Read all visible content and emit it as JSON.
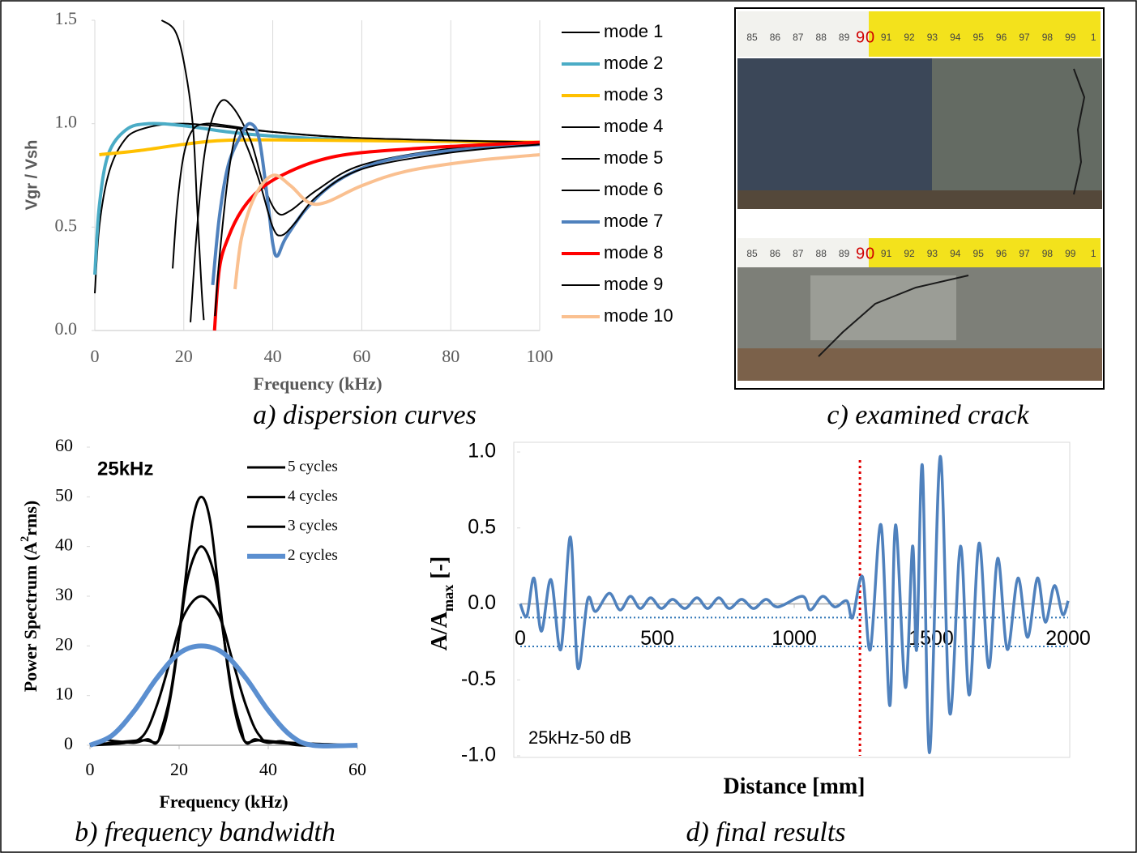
{
  "chart_data": [
    {
      "type": "line",
      "xlabel": "Frequency (kHz)",
      "ylabel": "Vgr / Vsh",
      "caption": "a) dispersion curves",
      "xlim": [
        0,
        100
      ],
      "ylim": [
        0,
        1.5
      ],
      "xticks": [
        0,
        20,
        40,
        60,
        80,
        100
      ],
      "yticks": [
        {
          "value": 0,
          "label": "0.0"
        },
        0.5,
        {
          "value": 1,
          "label": "1.0"
        },
        1.5
      ],
      "grid": "x",
      "series": [
        {
          "name": "mode 1",
          "color": "#000000",
          "x": [
            0,
            1,
            3,
            6,
            10,
            20,
            40,
            60,
            100
          ],
          "values": [
            0.18,
            0.5,
            0.75,
            0.9,
            0.97,
            1.0,
            0.96,
            0.93,
            0.91
          ]
        },
        {
          "name": "mode 2",
          "color": "#4bacc6",
          "x": [
            0,
            1,
            3,
            7,
            12,
            20,
            30,
            40,
            60,
            100
          ],
          "values": [
            0.27,
            0.6,
            0.85,
            0.97,
            1.0,
            0.99,
            0.96,
            0.94,
            0.92,
            0.91
          ]
        },
        {
          "name": "mode 3",
          "color": "#ffc000",
          "x": [
            1,
            10,
            20,
            30,
            50,
            100
          ],
          "values": [
            0.85,
            0.87,
            0.9,
            0.92,
            0.92,
            0.91
          ]
        },
        {
          "name": "mode 4",
          "color": "#000000",
          "x": [
            15,
            18,
            20,
            22,
            23,
            24,
            24.5
          ],
          "values": [
            1.5,
            1.45,
            1.3,
            1.0,
            0.6,
            0.2,
            0.05
          ]
        },
        {
          "name": "mode 5",
          "color": "#000000",
          "x": [
            17.5,
            18.5,
            20,
            22,
            25,
            30,
            40,
            60,
            100
          ],
          "values": [
            0.3,
            0.6,
            0.85,
            0.97,
            1.0,
            0.99,
            0.96,
            0.93,
            0.91
          ]
        },
        {
          "name": "mode 6",
          "color": "#000000",
          "x": [
            21.5,
            23,
            25,
            28,
            31,
            35,
            38,
            41,
            44,
            50,
            60,
            80,
            100
          ],
          "values": [
            0.04,
            0.5,
            0.9,
            1.1,
            1.08,
            0.92,
            0.7,
            0.57,
            0.58,
            0.68,
            0.8,
            0.88,
            0.91
          ]
        },
        {
          "name": "mode 7",
          "color": "#4f81bd",
          "x": [
            26.5,
            28,
            30,
            33,
            35,
            37,
            39,
            40,
            41,
            43,
            48,
            55,
            65,
            80,
            100
          ],
          "values": [
            0.22,
            0.55,
            0.8,
            0.95,
            1.0,
            0.92,
            0.6,
            0.42,
            0.36,
            0.45,
            0.6,
            0.73,
            0.82,
            0.87,
            0.9
          ]
        },
        {
          "name": "mode 8",
          "color": "#ff0000",
          "x": [
            26.9,
            28,
            30,
            33,
            37,
            42,
            50,
            60,
            80,
            100
          ],
          "values": [
            0.0,
            0.3,
            0.45,
            0.58,
            0.68,
            0.75,
            0.82,
            0.86,
            0.89,
            0.91
          ]
        },
        {
          "name": "mode 9",
          "color": "#000000",
          "x": [
            27,
            28,
            30,
            32,
            34,
            37,
            40,
            42,
            45,
            50,
            60,
            80,
            100
          ],
          "values": [
            0.07,
            0.35,
            0.75,
            0.97,
            0.9,
            0.72,
            0.5,
            0.46,
            0.52,
            0.65,
            0.78,
            0.86,
            0.9
          ]
        },
        {
          "name": "mode 10",
          "color": "#fac090",
          "x": [
            31.5,
            33,
            36,
            40,
            44,
            48,
            52,
            60,
            70,
            85,
            100
          ],
          "values": [
            0.2,
            0.45,
            0.65,
            0.75,
            0.7,
            0.62,
            0.62,
            0.7,
            0.77,
            0.82,
            0.85
          ]
        }
      ]
    },
    {
      "type": "line",
      "xlabel": "Frequency (kHz)",
      "ylabel": {
        "main": "Power Spectrum (A",
        "sup": "2",
        "tail": "rms)"
      },
      "caption": "b) frequency bandwidth",
      "annotation": "25kHz",
      "xlim": [
        0,
        60
      ],
      "ylim": [
        0,
        60
      ],
      "xticks": [
        0,
        20,
        40,
        60
      ],
      "yticks": [
        0,
        10,
        20,
        30,
        40,
        50,
        60
      ],
      "grid": "none",
      "series": [
        {
          "name": "5 cycles",
          "color": "#000000",
          "x": [
            0,
            3,
            6,
            10,
            13,
            15,
            17,
            19,
            21,
            23,
            25,
            27,
            29,
            31,
            33,
            35,
            37,
            40,
            43,
            47,
            60
          ],
          "values": [
            0,
            1,
            0.8,
            0.5,
            1.2,
            0.5,
            5,
            15,
            30,
            45,
            50,
            45,
            30,
            15,
            5,
            0.5,
            1.2,
            0.5,
            0.8,
            0,
            0
          ]
        },
        {
          "name": "4 cycles",
          "color": "#000000",
          "x": [
            0,
            5,
            12,
            15,
            16,
            18,
            20,
            22,
            25,
            28,
            30,
            32,
            34,
            35,
            38,
            45,
            60
          ],
          "values": [
            0,
            0.5,
            1,
            0.6,
            3,
            10,
            22,
            34,
            40,
            34,
            22,
            10,
            3,
            0.6,
            1,
            0.5,
            0
          ]
        },
        {
          "name": "3 cycles",
          "color": "#000000",
          "x": [
            0,
            8,
            12,
            15,
            18,
            21,
            25,
            29,
            32,
            35,
            38,
            42,
            60
          ],
          "values": [
            0,
            0.5,
            2,
            8,
            17,
            26,
            30,
            26,
            17,
            8,
            2,
            0.5,
            0
          ]
        },
        {
          "name": "2 cycles",
          "color": "#5b8fd0",
          "x": [
            0,
            5,
            10,
            15,
            20,
            25,
            30,
            35,
            40,
            45,
            50,
            60
          ],
          "values": [
            0,
            2,
            7,
            13.5,
            18.5,
            20,
            18.5,
            13.5,
            7,
            2,
            0,
            0
          ]
        }
      ]
    },
    {
      "type": "line",
      "xlabel": "Distance [mm]",
      "ylabel": {
        "main": "A/A",
        "sub": "max",
        "tail": " [-]"
      },
      "caption": "d) final results",
      "annotation": "25kHz-50 dB",
      "xlim": [
        0,
        2000
      ],
      "ylim": [
        -1,
        1
      ],
      "xticks": [
        0,
        500,
        1000,
        1500,
        2000
      ],
      "yticks": [
        {
          "value": -1,
          "label": "-1.0"
        },
        -0.5,
        {
          "value": 0,
          "label": "0.0"
        },
        0.5,
        {
          "value": 1,
          "label": "1.0"
        }
      ],
      "grid": "none",
      "marker_line": {
        "x": 1240,
        "color": "#e00000"
      },
      "threshold_lines": [
        -0.09,
        -0.28
      ],
      "series": [
        {
          "color": "#4f81bd",
          "x": [
            0,
            24,
            50,
            77,
            112,
            148,
            183,
            210,
            246,
            275,
            325,
            364,
            402,
            438,
            476,
            515,
            556,
            601,
            645,
            684,
            725,
            763,
            808,
            852,
            897,
            941,
            1030,
            1059,
            1104,
            1148,
            1192,
            1213,
            1249,
            1278,
            1317,
            1349,
            1370,
            1406,
            1432,
            1447,
            1468,
            1494,
            1533,
            1568,
            1607,
            1639,
            1675,
            1710,
            1743,
            1778,
            1817,
            1852,
            1888,
            1917,
            1950,
            1980,
            2000
          ],
          "values": [
            0,
            -0.08,
            0.17,
            -0.18,
            0.16,
            -0.3,
            0.44,
            -0.42,
            0.03,
            -0.05,
            0.07,
            -0.04,
            0.05,
            -0.03,
            0.04,
            -0.03,
            0.03,
            -0.03,
            0.04,
            -0.03,
            0.04,
            -0.03,
            0.03,
            -0.03,
            0.03,
            -0.02,
            0.05,
            -0.04,
            0.05,
            -0.02,
            0.02,
            -0.09,
            0.18,
            -0.3,
            0.52,
            -0.67,
            0.52,
            -0.55,
            0.38,
            -0.3,
            0.91,
            -0.98,
            0.97,
            -0.72,
            0.38,
            -0.6,
            0.4,
            -0.42,
            0.3,
            -0.3,
            0.17,
            -0.22,
            0.17,
            -0.12,
            0.12,
            -0.07,
            0.02
          ]
        }
      ]
    }
  ],
  "photo": {
    "caption": "c) examined crack",
    "ruler_labels": [
      "85",
      "86",
      "87",
      "88",
      "89",
      "9",
      "0",
      "91",
      "92",
      "93",
      "94",
      "95",
      "96",
      "97",
      "98",
      "99",
      "1"
    ]
  }
}
